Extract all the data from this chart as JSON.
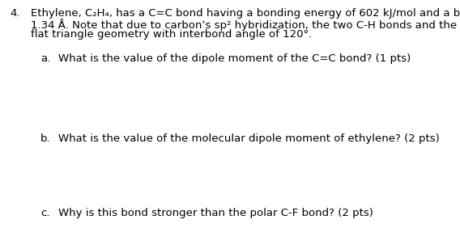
{
  "background_color": "#ffffff",
  "question_number": "4.",
  "question_text_line1": "Ethylene, C₂H₄, has a C=C bond having a bonding energy of 602 kJ/mol and a bond length of",
  "question_text_line2": "1.34 Å. Note that due to carbon’s sp² hybridization, the two C-H bonds and the C=C bond form a",
  "question_text_line3": "flat triangle geometry with interbond angle of 120°.",
  "sub_a_label": "a.",
  "sub_a_text": "What is the value of the dipole moment of the C=C bond? (1 pts)",
  "sub_b_label": "b.",
  "sub_b_text": "What is the value of the molecular dipole moment of ethylene? (2 pts)",
  "sub_c_label": "c.",
  "sub_c_text": "Why is this bond stronger than the polar C-F bond? (2 pts)",
  "font_size_main": 9.5,
  "font_size_sub": 9.5,
  "text_color": "#000000"
}
